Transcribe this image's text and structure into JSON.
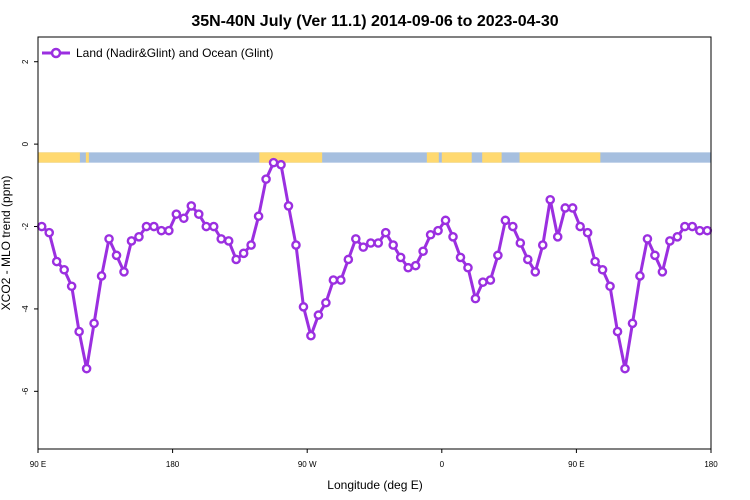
{
  "chart_data": {
    "type": "line",
    "title": "35N-40N July (Ver 11.1)   2014-09-06 to 2023-04-30",
    "xlabel": "Longitude (deg E)",
    "ylabel": "XCO2 - MLO trend (ppm)",
    "xlim": [
      90,
      540
    ],
    "ylim": [
      -7.4,
      2.6
    ],
    "x_ticks": [
      {
        "value": 90,
        "label": "90 E"
      },
      {
        "value": 180,
        "label": "180"
      },
      {
        "value": 270,
        "label": "90 W"
      },
      {
        "value": 360,
        "label": "0"
      },
      {
        "value": 450,
        "label": "90 E"
      },
      {
        "value": 540,
        "label": "180"
      }
    ],
    "y_ticks": [
      {
        "value": 2,
        "label": "2"
      },
      {
        "value": 0,
        "label": "0"
      },
      {
        "value": -2,
        "label": "-2"
      },
      {
        "value": -4,
        "label": "-4"
      },
      {
        "value": -6,
        "label": "-6"
      }
    ],
    "grid": false,
    "legend_position": "top-left",
    "series": [
      {
        "name": "Land (Nadir&Glint) and Ocean (Glint)",
        "color": "#9b2fe0",
        "x": [
          92.5,
          97.5,
          102.5,
          107.5,
          112.5,
          117.5,
          122.5,
          127.5,
          132.5,
          137.5,
          142.5,
          147.5,
          152.5,
          157.5,
          162.5,
          167.5,
          172.5,
          177.5,
          182.5,
          187.5,
          192.5,
          197.5,
          202.5,
          207.5,
          212.5,
          217.5,
          222.5,
          227.5,
          232.5,
          237.5,
          242.5,
          247.5,
          252.5,
          257.5,
          262.5,
          267.5,
          272.5,
          277.5,
          282.5,
          287.5,
          292.5,
          297.5,
          302.5,
          307.5,
          312.5,
          317.5,
          322.5,
          327.5,
          332.5,
          337.5,
          342.5,
          347.5,
          352.5,
          357.5,
          362.5,
          367.5,
          372.5,
          377.5,
          382.5,
          387.5,
          392.5,
          397.5,
          402.5,
          407.5,
          412.5,
          417.5,
          422.5,
          427.5,
          432.5,
          437.5,
          442.5,
          447.5,
          452.5,
          457.5,
          462.5,
          467.5,
          472.5,
          477.5,
          482.5,
          487.5,
          492.5,
          497.5,
          502.5,
          507.5,
          512.5,
          517.5,
          522.5,
          527.5,
          532.5,
          537.5
        ],
        "y": [
          -2.0,
          -2.15,
          -2.85,
          -3.05,
          -3.45,
          -4.55,
          -5.45,
          -4.35,
          -3.2,
          -2.3,
          -2.7,
          -3.1,
          -2.35,
          -2.25,
          -2.0,
          -2.0,
          -2.1,
          -2.1,
          -1.7,
          -1.8,
          -1.5,
          -1.7,
          -2.0,
          -2.0,
          -2.3,
          -2.35,
          -2.8,
          -2.65,
          -2.45,
          -1.75,
          -0.85,
          -0.45,
          -0.5,
          -1.5,
          -2.45,
          -3.95,
          -4.65,
          -4.15,
          -3.85,
          -3.3,
          -3.3,
          -2.8,
          -2.3,
          -2.5,
          -2.4,
          -2.4,
          -2.15,
          -2.45,
          -2.75,
          -3.0,
          -2.95,
          -2.6,
          -2.2,
          -2.1,
          -1.85,
          -2.25,
          -2.75,
          -3.0,
          -3.75,
          -3.35,
          -3.3,
          -2.7,
          -1.85,
          -2.0,
          -2.4,
          -2.8,
          -3.1,
          -2.45,
          -1.35,
          -2.25,
          -1.55,
          -1.55,
          -2.0,
          -2.15,
          -2.85,
          -3.05,
          -3.45,
          -4.55,
          -5.45,
          -4.35,
          -3.2,
          -2.3,
          -2.7,
          -3.1,
          -2.35,
          -2.25,
          -2.0,
          -2.0,
          -2.1,
          -2.1
        ]
      }
    ],
    "surface_band": {
      "y_top": -0.2,
      "y_bottom": -0.45,
      "land_color": "#ffd970",
      "ocean_color": "#a6bfdf",
      "land_ranges": [
        [
          90,
          118
        ],
        [
          122,
          124
        ],
        [
          238,
          280
        ],
        [
          350,
          358
        ],
        [
          360,
          380
        ],
        [
          387,
          400
        ],
        [
          412,
          466
        ]
      ]
    }
  }
}
